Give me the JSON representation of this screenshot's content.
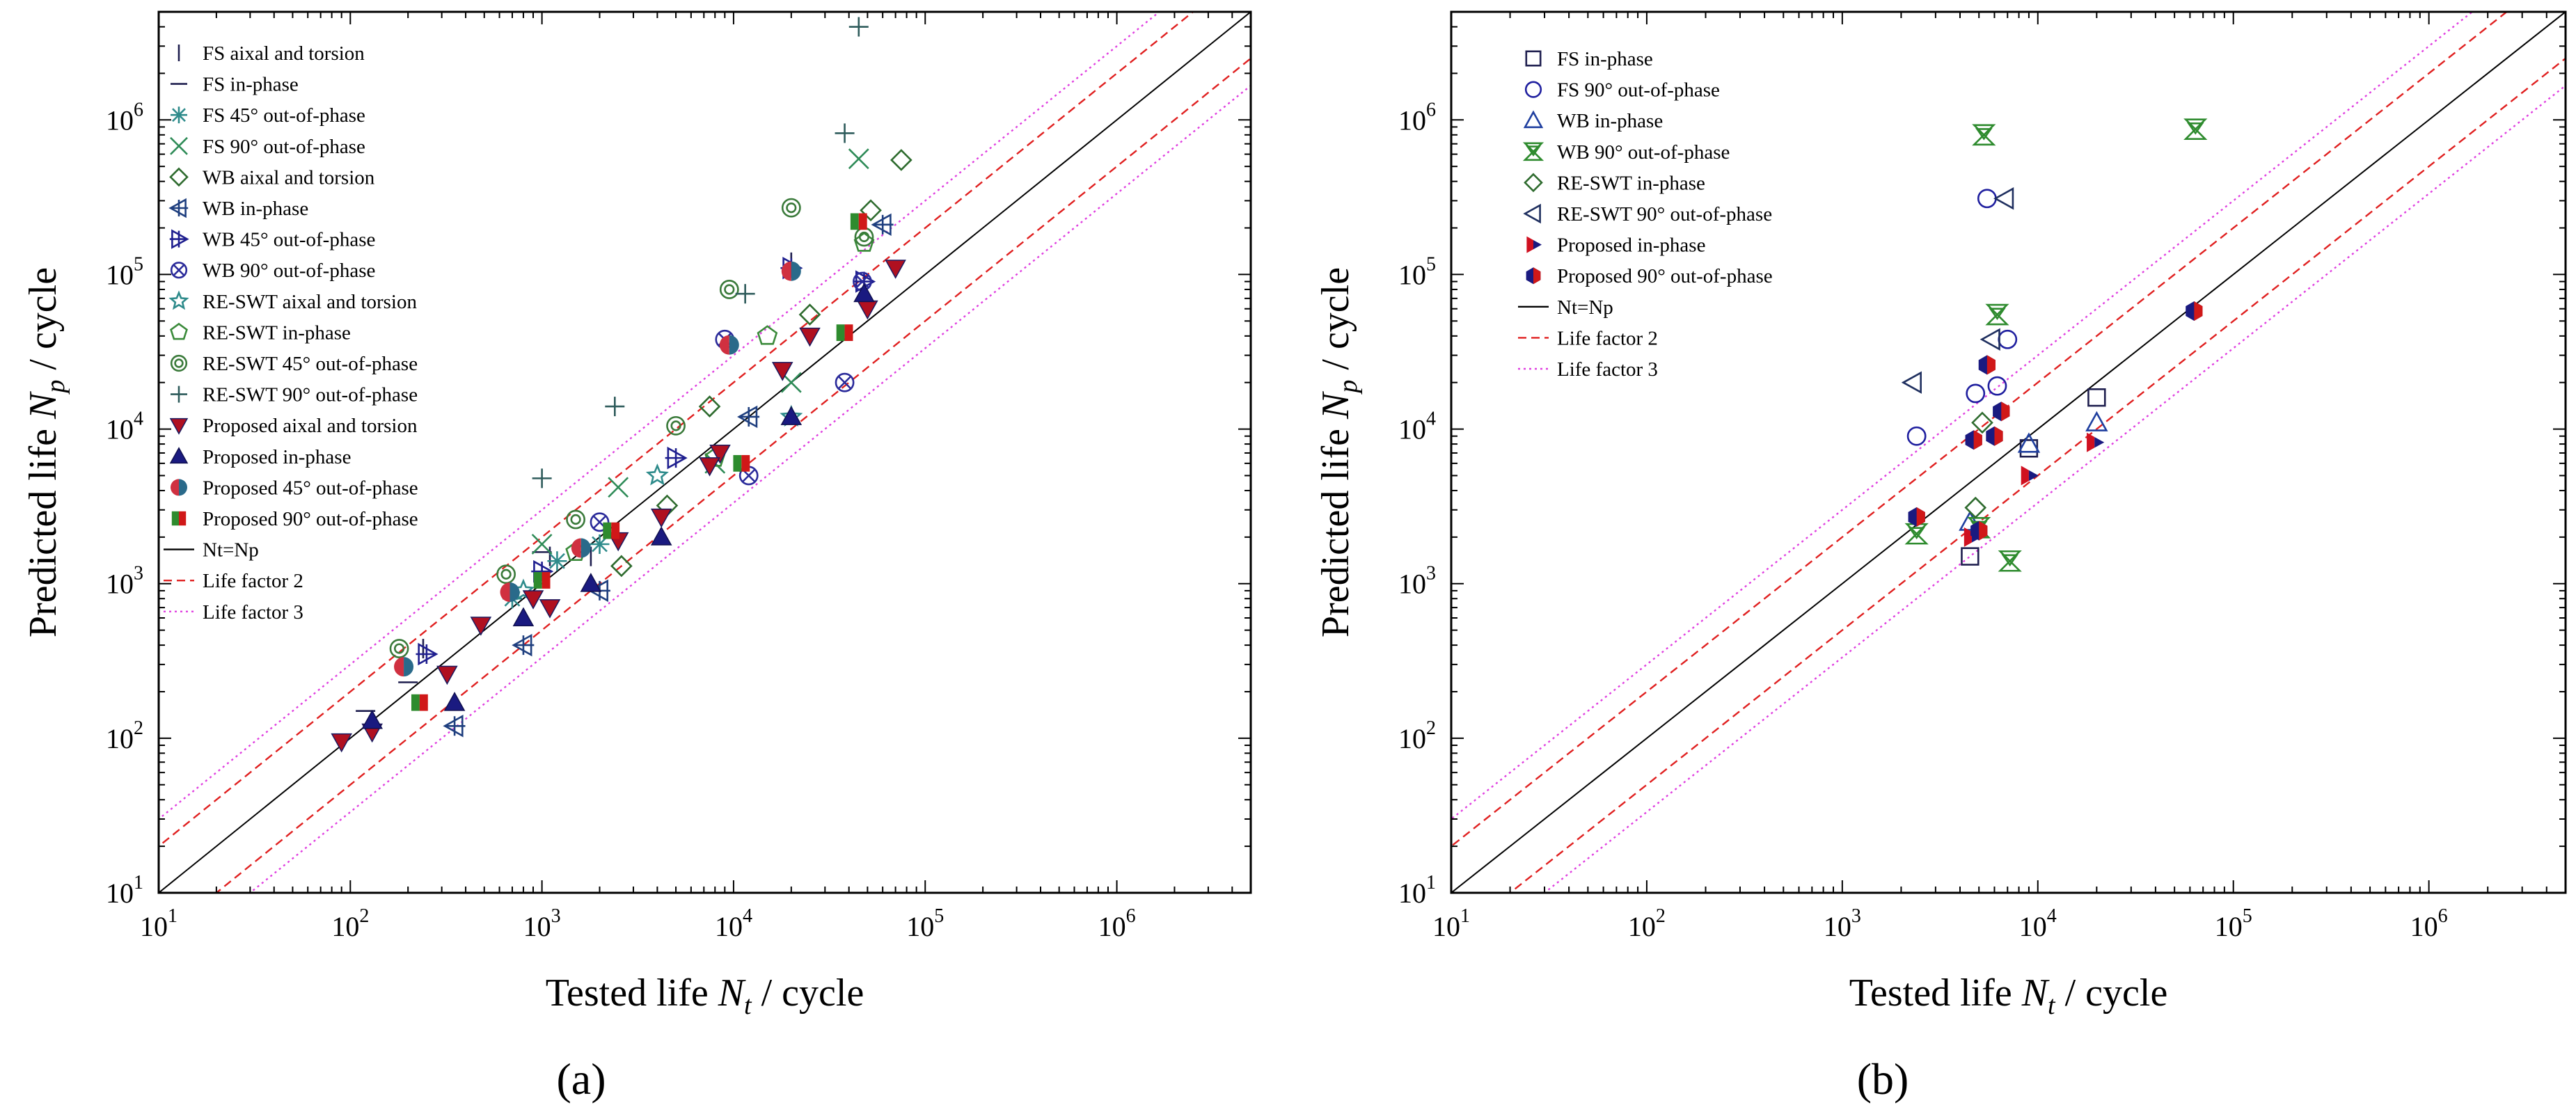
{
  "figure": {
    "panel_labels": [
      "(a)",
      "(b)"
    ]
  },
  "chart_data": [
    {
      "id": "a",
      "type": "scatter",
      "panel_label": "(a)",
      "xlabel": "Tested life N_t / cycle",
      "ylabel": "Predicted life N_p / cycle",
      "xscale": "log",
      "yscale": "log",
      "xlim": [
        10,
        5000000
      ],
      "ylim": [
        10,
        5000000
      ],
      "xticks": [
        10,
        100,
        1000,
        10000,
        100000,
        1000000
      ],
      "yticks": [
        10,
        100,
        1000,
        10000,
        100000,
        1000000
      ],
      "grid": false,
      "legend_position": "top-left",
      "series": [
        {
          "name": "FS aixal and torsion",
          "marker": "vline",
          "color": "#1f1f4f",
          "points": [
            [
              240,
              380
            ],
            [
              1100,
              1500
            ],
            [
              1800,
              1500
            ],
            [
              20000,
              120000
            ]
          ]
        },
        {
          "name": "FS in-phase",
          "marker": "hline",
          "color": "#1f1f4f",
          "points": [
            [
              120,
              150
            ],
            [
              200,
              230
            ],
            [
              1000,
              1600
            ]
          ]
        },
        {
          "name": "FS 45° out-of-phase",
          "marker": "asterisk",
          "color": "#2e8b8b",
          "points": [
            [
              700,
              800
            ],
            [
              1200,
              1400
            ],
            [
              2000,
              1800
            ]
          ]
        },
        {
          "name": "FS 90° out-of-phase",
          "marker": "x",
          "color": "#2e8b57",
          "points": [
            [
              1000,
              1800
            ],
            [
              2500,
              4200
            ],
            [
              8000,
              6000
            ],
            [
              45000,
              560000
            ],
            [
              20000,
              20000
            ]
          ]
        },
        {
          "name": "WB aixal and torsion",
          "marker": "diamond",
          "color": "#2e6b2e",
          "points": [
            [
              2600,
              1300
            ],
            [
              7500,
              14000
            ],
            [
              25000,
              55000
            ],
            [
              52000,
              260000
            ],
            [
              75000,
              550000
            ],
            [
              4500,
              3200
            ]
          ]
        },
        {
          "name": "WB in-phase",
          "marker": "triangle-left-cross",
          "color": "#1f3f7f",
          "points": [
            [
              350,
              120
            ],
            [
              800,
              400
            ],
            [
              2000,
              900
            ],
            [
              12000,
              12000
            ],
            [
              60000,
              210000
            ]
          ]
        },
        {
          "name": "WB 45° out-of-phase",
          "marker": "triangle-right-cross",
          "color": "#1f1f8f",
          "points": [
            [
              250,
              350
            ],
            [
              1000,
              1200
            ],
            [
              5000,
              6500
            ],
            [
              20000,
              110000
            ],
            [
              48000,
              90000
            ]
          ]
        },
        {
          "name": "WB 90° out-of-phase",
          "marker": "circle-x",
          "color": "#2a2a9a",
          "points": [
            [
              2000,
              2500
            ],
            [
              9000,
              38000
            ],
            [
              12000,
              5000
            ],
            [
              38000,
              20000
            ],
            [
              47000,
              90000
            ]
          ]
        },
        {
          "name": "RE-SWT aixal and torsion",
          "marker": "star",
          "color": "#2e8b8b",
          "points": [
            [
              800,
              900
            ],
            [
              4000,
              5000
            ],
            [
              20000,
              12000
            ]
          ]
        },
        {
          "name": "RE-SWT in-phase",
          "marker": "pentagon",
          "color": "#3a8a3a",
          "points": [
            [
              1500,
              1600
            ],
            [
              8000,
              6500
            ],
            [
              48000,
              160000
            ],
            [
              15000,
              40000
            ]
          ]
        },
        {
          "name": "RE-SWT 45° out-of-phase",
          "marker": "circle-dot",
          "color": "#3a7a3a",
          "points": [
            [
              180,
              380
            ],
            [
              650,
              1150
            ],
            [
              1500,
              2600
            ],
            [
              5000,
              10500
            ],
            [
              9500,
              80000
            ],
            [
              20000,
              270000
            ],
            [
              48000,
              175000
            ]
          ]
        },
        {
          "name": "RE-SWT 90° out-of-phase",
          "marker": "plus",
          "color": "#2e5b5b",
          "points": [
            [
              1000,
              4800
            ],
            [
              2400,
              14000
            ],
            [
              11500,
              75000
            ],
            [
              38000,
              820000
            ],
            [
              45000,
              4000000
            ]
          ]
        },
        {
          "name": "Proposed aixal and torsion",
          "marker": "tri-down-filled",
          "color": "#b01020",
          "points": [
            [
              90,
              95
            ],
            [
              130,
              110
            ],
            [
              320,
              260
            ],
            [
              480,
              540
            ],
            [
              900,
              800
            ],
            [
              1100,
              700
            ],
            [
              2500,
              1900
            ],
            [
              4200,
              2700
            ],
            [
              8500,
              7000
            ],
            [
              18000,
              24000
            ],
            [
              25000,
              40000
            ],
            [
              50000,
              60000
            ],
            [
              70000,
              110000
            ],
            [
              7500,
              5800
            ]
          ]
        },
        {
          "name": "Proposed in-phase",
          "marker": "tri-up-filled",
          "color": "#1a1a80",
          "points": [
            [
              130,
              130
            ],
            [
              350,
              170
            ],
            [
              800,
              600
            ],
            [
              1800,
              1000
            ],
            [
              4200,
              2000
            ],
            [
              20000,
              12000
            ],
            [
              48000,
              75000
            ]
          ]
        },
        {
          "name": "Proposed 45° out-of-phase",
          "marker": "circle-half",
          "color": "#c03040",
          "points": [
            [
              190,
              290
            ],
            [
              680,
              880
            ],
            [
              1600,
              1700
            ],
            [
              9500,
              35000
            ],
            [
              20000,
              105000
            ]
          ]
        },
        {
          "name": "Proposed 90° out-of-phase",
          "marker": "square-half",
          "color": "#c01818",
          "points": [
            [
              230,
              170
            ],
            [
              1000,
              1050
            ],
            [
              2300,
              2200
            ],
            [
              11000,
              6000
            ],
            [
              38000,
              42000
            ],
            [
              45000,
              220000
            ]
          ]
        }
      ],
      "reference_lines": [
        {
          "name": "Nt=Np",
          "factor": 1,
          "style": "solid",
          "color": "#000000"
        },
        {
          "name": "Life factor 2",
          "factor": 2,
          "style": "dashed",
          "color": "#e02020"
        },
        {
          "name": "Life factor 3",
          "factor": 3,
          "style": "dotted",
          "color": "#e040e0"
        }
      ]
    },
    {
      "id": "b",
      "type": "scatter",
      "panel_label": "(b)",
      "xlabel": "Tested life N_t / cycle",
      "ylabel": "Predicted life N_p / cycle",
      "xscale": "log",
      "yscale": "log",
      "xlim": [
        10,
        5000000
      ],
      "ylim": [
        10,
        5000000
      ],
      "xticks": [
        10,
        100,
        1000,
        10000,
        100000,
        1000000
      ],
      "yticks": [
        10,
        100,
        1000,
        10000,
        100000,
        1000000
      ],
      "grid": false,
      "legend_position": "top-left",
      "series": [
        {
          "name": "FS in-phase",
          "marker": "square",
          "color": "#1f1f4f",
          "points": [
            [
              4500,
              1500
            ],
            [
              9000,
              7500
            ],
            [
              20000,
              16000
            ]
          ]
        },
        {
          "name": "FS 90° out-of-phase",
          "marker": "circle",
          "color": "#1f1f9f",
          "points": [
            [
              2400,
              9000
            ],
            [
              4800,
              17000
            ],
            [
              6200,
              19000
            ],
            [
              7000,
              38000
            ],
            [
              5500,
              310000
            ]
          ]
        },
        {
          "name": "WB in-phase",
          "marker": "triangle-up",
          "color": "#1f3f9f",
          "points": [
            [
              4500,
              2500
            ],
            [
              9000,
              8000
            ],
            [
              20000,
              11000
            ]
          ]
        },
        {
          "name": "WB 90° out-of-phase",
          "marker": "bowtie",
          "color": "#2e8b2e",
          "points": [
            [
              2400,
              2100
            ],
            [
              5000,
              2300
            ],
            [
              7200,
              1400
            ],
            [
              5300,
              800000
            ],
            [
              64000,
              870000
            ],
            [
              6200,
              55000
            ]
          ]
        },
        {
          "name": "RE-SWT in-phase",
          "marker": "diamond",
          "color": "#2e6b2e",
          "points": [
            [
              4800,
              3100
            ],
            [
              5200,
              11000
            ]
          ]
        },
        {
          "name": "RE-SWT 90° out-of-phase",
          "marker": "triangle-left",
          "color": "#1f2f5f",
          "points": [
            [
              2300,
              20000
            ],
            [
              5800,
              38000
            ],
            [
              6800,
              310000
            ]
          ]
        },
        {
          "name": "Proposed in-phase",
          "marker": "tri-right-half",
          "color": "#1a1a80",
          "points": [
            [
              4600,
              2000
            ],
            [
              9000,
              5000
            ],
            [
              19500,
              8200
            ]
          ]
        },
        {
          "name": "Proposed  90° out-of-phase",
          "marker": "hexagon-half",
          "color": "#c01818",
          "points": [
            [
              2400,
              2700
            ],
            [
              4700,
              8500
            ],
            [
              5500,
              26000
            ],
            [
              6000,
              9000
            ],
            [
              6500,
              13000
            ],
            [
              63000,
              58000
            ],
            [
              5000,
              2200
            ]
          ]
        }
      ],
      "reference_lines": [
        {
          "name": "Nt=Np",
          "factor": 1,
          "style": "solid",
          "color": "#000000"
        },
        {
          "name": "Life factor 2",
          "factor": 2,
          "style": "dashed",
          "color": "#e02020"
        },
        {
          "name": "Life factor 3",
          "factor": 3,
          "style": "dotted",
          "color": "#e040e0"
        }
      ]
    }
  ]
}
